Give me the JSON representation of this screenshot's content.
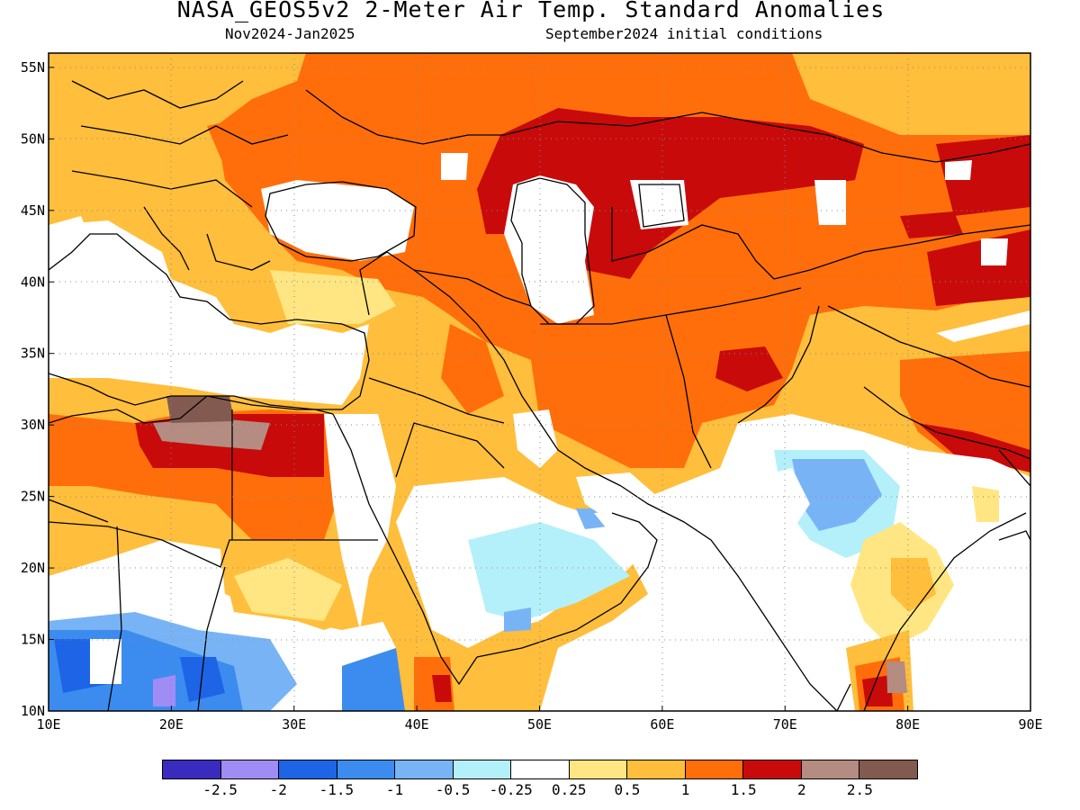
{
  "title": "NASA_GEOS5v2 2-Meter Air Temp. Standard Anomalies",
  "subtitle_left": "Nov2024-Jan2025",
  "subtitle_right": "September2024 initial conditions",
  "map": {
    "lon_range": [
      10,
      90
    ],
    "lat_range": [
      10,
      56
    ],
    "x_ticks": [
      "10E",
      "20E",
      "30E",
      "40E",
      "50E",
      "60E",
      "70E",
      "80E",
      "90E"
    ],
    "y_ticks": [
      "55N",
      "50N",
      "45N",
      "40N",
      "35N",
      "30N",
      "25N",
      "20N",
      "15N",
      "10N"
    ],
    "grid": "dotted"
  },
  "legend": {
    "colors": [
      "#3a2bbf",
      "#a08cf5",
      "#1e64e6",
      "#3c8cf0",
      "#78b4f5",
      "#b4f0fa",
      "#ffffff",
      "#ffe682",
      "#ffbe3c",
      "#ff6e0a",
      "#c80a0a",
      "#b48c82",
      "#825a50"
    ],
    "labels": [
      "-2.5",
      "-2",
      "-1.5",
      "-1",
      "-0.5",
      "-0.25",
      "0.25",
      "0.5",
      "1",
      "1.5",
      "2",
      "2.5"
    ]
  }
}
